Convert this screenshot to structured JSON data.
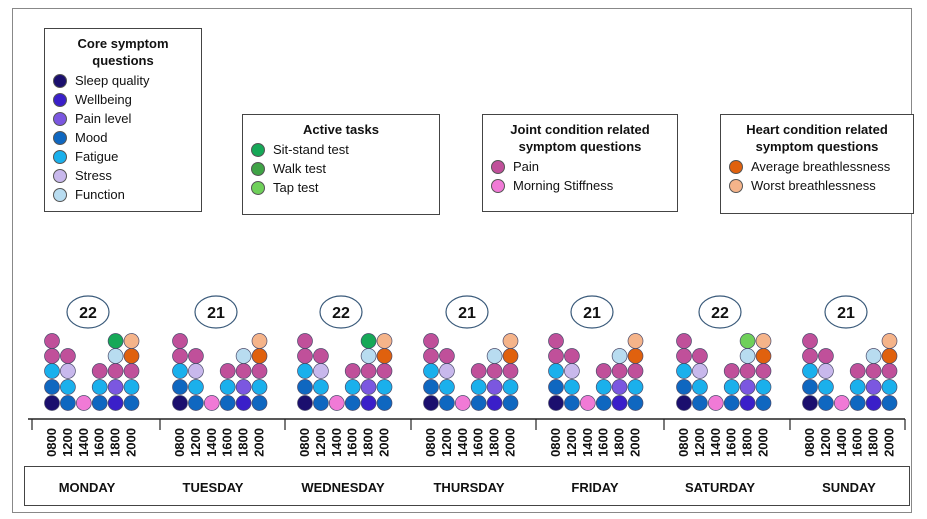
{
  "legends": [
    {
      "id": "core",
      "title_lines": [
        "Core symptom",
        "questions"
      ],
      "items": [
        {
          "label": "Sleep quality",
          "color": "#1b0f6e"
        },
        {
          "label": "Wellbeing",
          "color": "#3a1fc9"
        },
        {
          "label": "Pain level",
          "color": "#7b57e0"
        },
        {
          "label": "Mood",
          "color": "#0f67c0"
        },
        {
          "label": "Fatigue",
          "color": "#1ab0ec"
        },
        {
          "label": "Stress",
          "color": "#c8b8ec"
        },
        {
          "label": "Function",
          "color": "#b8dcf0"
        }
      ]
    },
    {
      "id": "active",
      "title_lines": [
        "Active tasks"
      ],
      "items": [
        {
          "label": "Sit-stand test",
          "color": "#16a857"
        },
        {
          "label": "Walk test",
          "color": "#3fa346"
        },
        {
          "label": "Tap test",
          "color": "#6fd05a"
        }
      ]
    },
    {
      "id": "joint",
      "title_lines": [
        "Joint condition related",
        "symptom questions"
      ],
      "items": [
        {
          "label": "Pain",
          "color": "#c0509a"
        },
        {
          "label": "Morning Stiffness",
          "color": "#f07ad6"
        }
      ]
    },
    {
      "id": "heart",
      "title_lines": [
        "Heart condition related",
        "symptom questions"
      ],
      "items": [
        {
          "label": "Average breathlessness",
          "color": "#e0610e"
        },
        {
          "label": "Worst breathlessness",
          "color": "#f5b48a"
        }
      ]
    }
  ],
  "time_labels": [
    "0800",
    "1200",
    "1400",
    "1600",
    "1800",
    "2000"
  ],
  "days": [
    {
      "name": "MONDAY",
      "total": "22",
      "active": true
    },
    {
      "name": "TUESDAY",
      "total": "21",
      "active": false
    },
    {
      "name": "WEDNESDAY",
      "total": "22",
      "active": true
    },
    {
      "name": "THURSDAY",
      "total": "21",
      "active": false
    },
    {
      "name": "FRIDAY",
      "total": "21",
      "active": false
    },
    {
      "name": "SATURDAY",
      "total": "22",
      "active": true
    },
    {
      "name": "SUNDAY",
      "total": "21",
      "active": false
    }
  ],
  "colors": {
    "sleep": "#1b0f6e",
    "wellbeing": "#3a1fc9",
    "painlevel": "#7b57e0",
    "mood": "#0f67c0",
    "fatigue": "#1ab0ec",
    "stress": "#c8b8ec",
    "function": "#b8dcf0",
    "active": "#16a857",
    "tap": "#6fd05a",
    "pain": "#c0509a",
    "stiffness": "#f07ad6",
    "avgbreath": "#e0610e",
    "worstbreath": "#f5b48a"
  }
}
